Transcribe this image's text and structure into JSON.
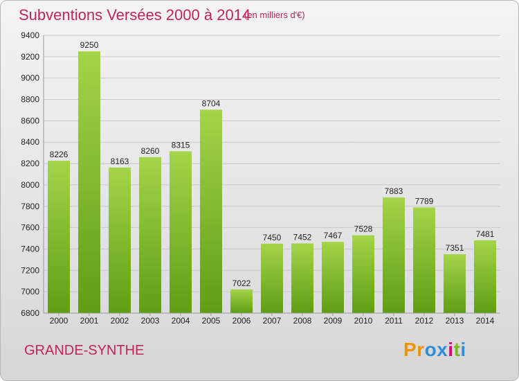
{
  "title": "Subventions Versées 2000 à 2014",
  "subtitle": "(en milliers d'€)",
  "commune": "GRANDE-SYNTHE",
  "logo": {
    "text": "Proxiti",
    "letters": [
      "P",
      "r",
      "o",
      "x",
      "i",
      "t",
      "i"
    ],
    "colors": [
      "#f39200",
      "#f39200",
      "#2f8ed8",
      "#2f8ed8",
      "#e2007a",
      "#7ab929",
      "#2f8ed8"
    ]
  },
  "colors": {
    "title": "#c0245a",
    "bar_top": "#a4d44a",
    "bar_bottom": "#5f9e14",
    "grid": "#c8c8c8"
  },
  "chart_data": {
    "type": "bar",
    "categories": [
      "2000",
      "2001",
      "2002",
      "2003",
      "2004",
      "2005",
      "2006",
      "2007",
      "2008",
      "2009",
      "2010",
      "2011",
      "2012",
      "2013",
      "2014"
    ],
    "values": [
      8226,
      9250,
      8163,
      8260,
      8315,
      8704,
      7022,
      7450,
      7452,
      7467,
      7528,
      7883,
      7789,
      7351,
      7481
    ],
    "ylim": [
      6800,
      9400
    ],
    "yticks": [
      6800,
      7000,
      7200,
      7400,
      7600,
      7800,
      8000,
      8200,
      8400,
      8600,
      8800,
      9000,
      9200,
      9400
    ],
    "grid": true,
    "title": "Subventions Versées 2000 à 2014",
    "xlabel": "",
    "ylabel": ""
  }
}
